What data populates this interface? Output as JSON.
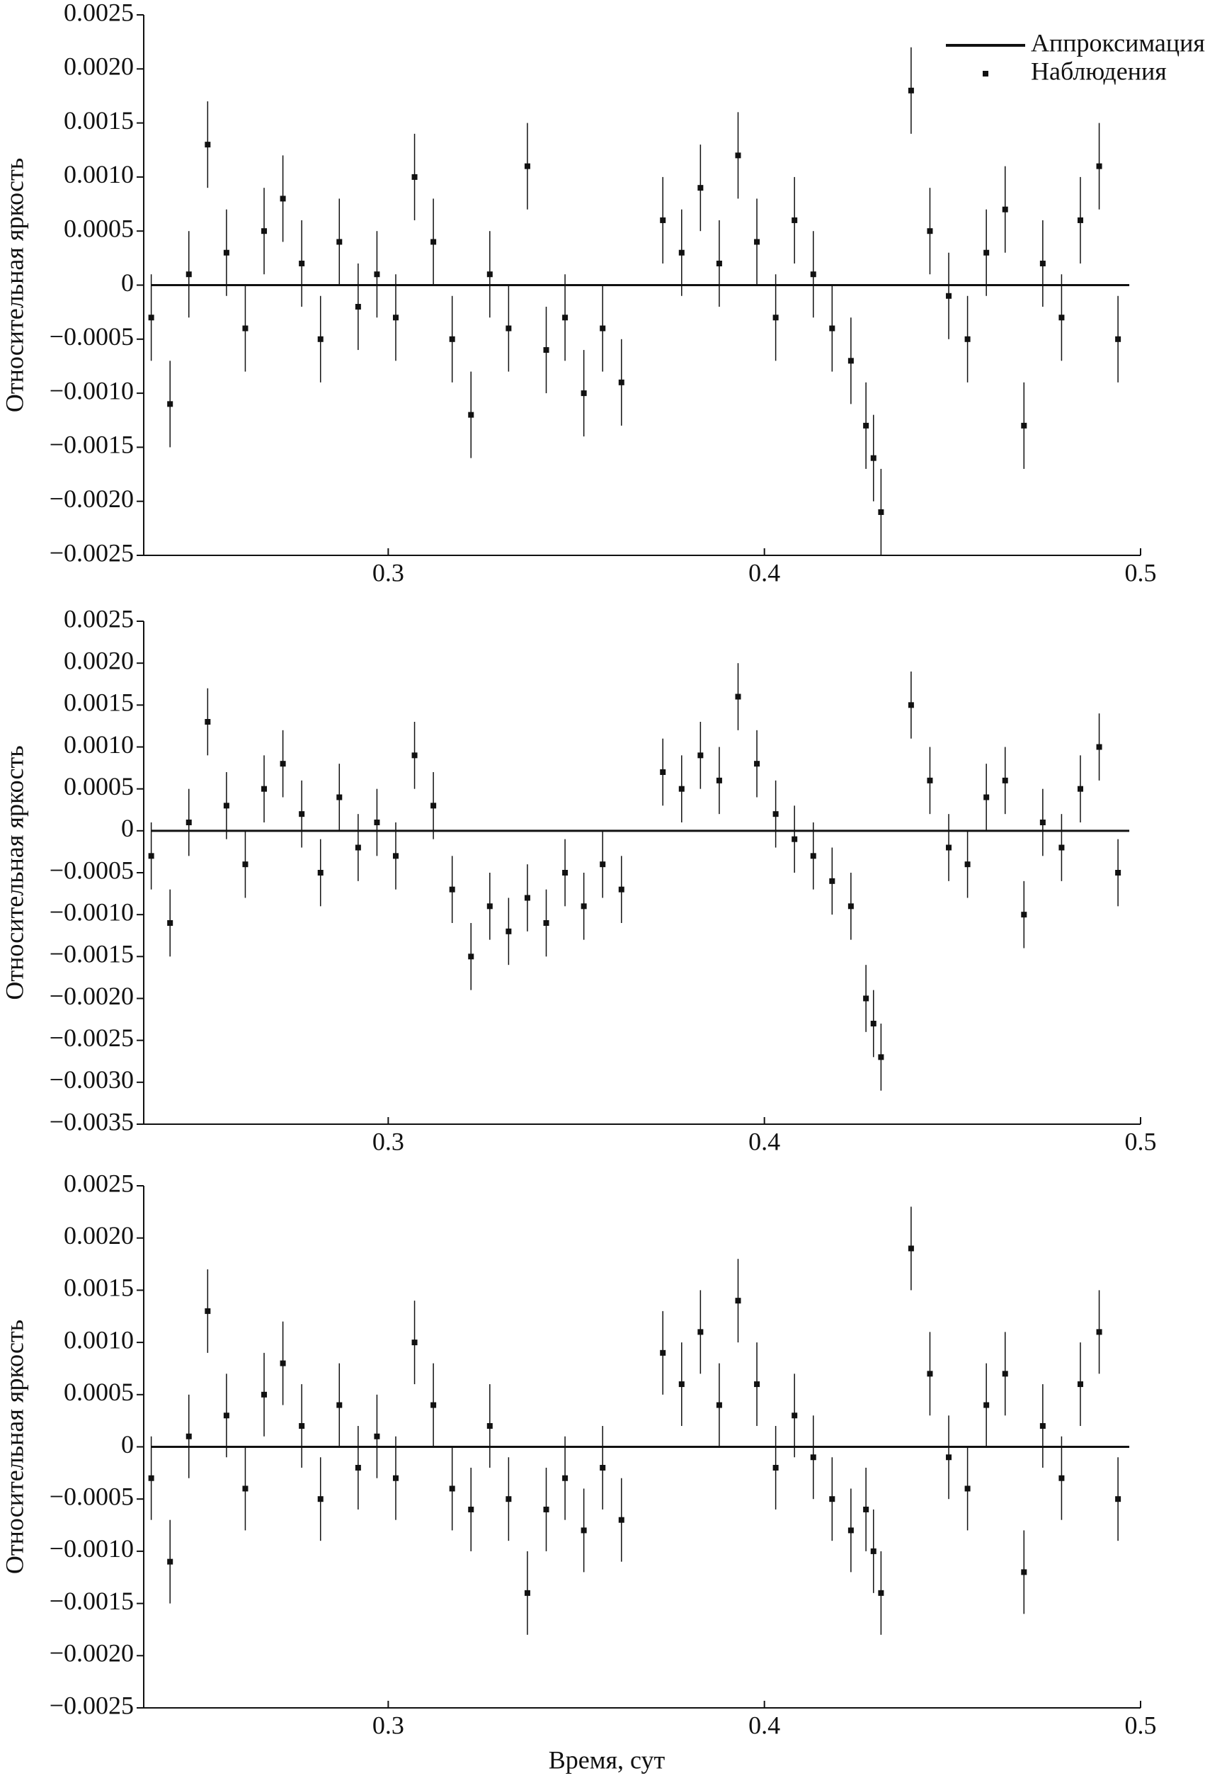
{
  "chart_data": [
    {
      "type": "scatter",
      "ylabel": "Относительная яркость",
      "legend": "upper right",
      "xlim": [
        0.235,
        0.5
      ],
      "xticks": [
        0.3,
        0.4,
        0.5
      ],
      "ylim": [
        -0.0025,
        0.0025
      ],
      "yticks": [
        {
          "value": -0.0025,
          "label": "−0.0025"
        },
        {
          "value": -0.002,
          "label": "−0.0020"
        },
        {
          "value": -0.0015,
          "label": "−0.0015"
        },
        {
          "value": -0.001,
          "label": "−0.0010"
        },
        {
          "value": -0.0005,
          "label": "−0.0005"
        },
        0,
        0.0005,
        {
          "value": 0.001,
          "label": "0.0010"
        },
        0.0015,
        {
          "value": 0.002,
          "label": "0.0020"
        },
        0.0025
      ],
      "series": [
        {
          "name": "Аппроксимация",
          "kind": "line",
          "color": "#111111",
          "x": [
            0.237,
            0.497
          ],
          "values": [
            0,
            0
          ]
        },
        {
          "name": "Наблюдения",
          "kind": "errorbar",
          "color": "#111111",
          "error": 0.0004,
          "x": [
            0.237,
            0.242,
            0.247,
            0.252,
            0.257,
            0.262,
            0.267,
            0.272,
            0.277,
            0.282,
            0.287,
            0.292,
            0.297,
            0.302,
            0.307,
            0.312,
            0.317,
            0.322,
            0.327,
            0.332,
            0.337,
            0.342,
            0.347,
            0.352,
            0.357,
            0.362,
            0.373,
            0.378,
            0.383,
            0.388,
            0.393,
            0.398,
            0.403,
            0.408,
            0.413,
            0.418,
            0.423,
            0.427,
            0.429,
            0.431,
            0.439,
            0.444,
            0.449,
            0.454,
            0.459,
            0.464,
            0.469,
            0.474,
            0.479,
            0.484,
            0.489,
            0.494
          ],
          "values": [
            -0.0003,
            -0.0011,
            0.0001,
            0.0013,
            0.0003,
            -0.0004,
            0.0005,
            0.0008,
            0.0002,
            -0.0005,
            0.0004,
            -0.0002,
            0.0001,
            -0.0003,
            0.001,
            0.0004,
            -0.0005,
            -0.0012,
            0.0001,
            -0.0004,
            0.0011,
            -0.0006,
            -0.0003,
            -0.001,
            -0.0004,
            -0.0009,
            0.0006,
            0.0003,
            0.0009,
            0.0002,
            0.0012,
            0.0004,
            -0.0003,
            0.0006,
            0.0001,
            -0.0004,
            -0.0007,
            -0.0013,
            -0.0016,
            -0.0021,
            0.0018,
            0.0005,
            -0.0001,
            -0.0005,
            0.0003,
            0.0007,
            -0.0013,
            0.0002,
            -0.0003,
            0.0006,
            0.0011,
            -0.0005
          ]
        }
      ]
    },
    {
      "type": "scatter",
      "ylabel": "Относительная яркость",
      "xlim": [
        0.235,
        0.5
      ],
      "xticks": [
        0.3,
        0.4,
        0.5
      ],
      "ylim": [
        -0.0035,
        0.0025
      ],
      "yticks": [
        {
          "value": -0.0035,
          "label": "−0.0035"
        },
        {
          "value": -0.003,
          "label": "−0.0030"
        },
        {
          "value": -0.0025,
          "label": "−0.0025"
        },
        {
          "value": -0.002,
          "label": "−0.0020"
        },
        {
          "value": -0.0015,
          "label": "−0.0015"
        },
        {
          "value": -0.001,
          "label": "−0.0010"
        },
        {
          "value": -0.0005,
          "label": "−0.0005"
        },
        0,
        0.0005,
        {
          "value": 0.001,
          "label": "0.0010"
        },
        0.0015,
        {
          "value": 0.002,
          "label": "0.0020"
        },
        0.0025
      ],
      "series": [
        {
          "kind": "line",
          "color": "#111111",
          "x": [
            0.237,
            0.497
          ],
          "values": [
            0,
            0
          ]
        },
        {
          "kind": "errorbar",
          "color": "#111111",
          "error": 0.0004,
          "x": [
            0.237,
            0.242,
            0.247,
            0.252,
            0.257,
            0.262,
            0.267,
            0.272,
            0.277,
            0.282,
            0.287,
            0.292,
            0.297,
            0.302,
            0.307,
            0.312,
            0.317,
            0.322,
            0.327,
            0.332,
            0.337,
            0.342,
            0.347,
            0.352,
            0.357,
            0.362,
            0.373,
            0.378,
            0.383,
            0.388,
            0.393,
            0.398,
            0.403,
            0.408,
            0.413,
            0.418,
            0.423,
            0.427,
            0.429,
            0.431,
            0.439,
            0.444,
            0.449,
            0.454,
            0.459,
            0.464,
            0.469,
            0.474,
            0.479,
            0.484,
            0.489,
            0.494
          ],
          "values": [
            -0.0003,
            -0.0011,
            0.0001,
            0.0013,
            0.0003,
            -0.0004,
            0.0005,
            0.0008,
            0.0002,
            -0.0005,
            0.0004,
            -0.0002,
            0.0001,
            -0.0003,
            0.0009,
            0.0003,
            -0.0007,
            -0.0015,
            -0.0009,
            -0.0012,
            -0.0008,
            -0.0011,
            -0.0005,
            -0.0009,
            -0.0004,
            -0.0007,
            0.0007,
            0.0005,
            0.0009,
            0.0006,
            0.0016,
            0.0008,
            0.0002,
            -0.0001,
            -0.0003,
            -0.0006,
            -0.0009,
            -0.002,
            -0.0023,
            -0.0027,
            0.0015,
            0.0006,
            -0.0002,
            -0.0004,
            0.0004,
            0.0006,
            -0.001,
            0.0001,
            -0.0002,
            0.0005,
            0.001,
            -0.0005
          ]
        }
      ]
    },
    {
      "type": "scatter",
      "ylabel": "Относительная яркость",
      "xlabel": "Время, сут",
      "xlim": [
        0.235,
        0.5
      ],
      "xticks": [
        0.3,
        0.4,
        0.5
      ],
      "ylim": [
        -0.0025,
        0.0025
      ],
      "yticks": [
        {
          "value": -0.0025,
          "label": "−0.0025"
        },
        {
          "value": -0.002,
          "label": "−0.0020"
        },
        {
          "value": -0.0015,
          "label": "−0.0015"
        },
        {
          "value": -0.001,
          "label": "−0.0010"
        },
        {
          "value": -0.0005,
          "label": "−0.0005"
        },
        0,
        0.0005,
        {
          "value": 0.001,
          "label": "0.0010"
        },
        0.0015,
        {
          "value": 0.002,
          "label": "0.0020"
        },
        0.0025
      ],
      "series": [
        {
          "kind": "line",
          "color": "#111111",
          "x": [
            0.237,
            0.497
          ],
          "values": [
            0,
            0
          ]
        },
        {
          "kind": "errorbar",
          "color": "#111111",
          "error": 0.0004,
          "x": [
            0.237,
            0.242,
            0.247,
            0.252,
            0.257,
            0.262,
            0.267,
            0.272,
            0.277,
            0.282,
            0.287,
            0.292,
            0.297,
            0.302,
            0.307,
            0.312,
            0.317,
            0.322,
            0.327,
            0.332,
            0.337,
            0.342,
            0.347,
            0.352,
            0.357,
            0.362,
            0.373,
            0.378,
            0.383,
            0.388,
            0.393,
            0.398,
            0.403,
            0.408,
            0.413,
            0.418,
            0.423,
            0.427,
            0.429,
            0.431,
            0.439,
            0.444,
            0.449,
            0.454,
            0.459,
            0.464,
            0.469,
            0.474,
            0.479,
            0.484,
            0.489,
            0.494
          ],
          "values": [
            -0.0003,
            -0.0011,
            0.0001,
            0.0013,
            0.0003,
            -0.0004,
            0.0005,
            0.0008,
            0.0002,
            -0.0005,
            0.0004,
            -0.0002,
            0.0001,
            -0.0003,
            0.001,
            0.0004,
            -0.0004,
            -0.0006,
            0.0002,
            -0.0005,
            -0.0014,
            -0.0006,
            -0.0003,
            -0.0008,
            -0.0002,
            -0.0007,
            0.0009,
            0.0006,
            0.0011,
            0.0004,
            0.0014,
            0.0006,
            -0.0002,
            0.0003,
            -0.0001,
            -0.0005,
            -0.0008,
            -0.0006,
            -0.001,
            -0.0014,
            0.0019,
            0.0007,
            -0.0001,
            -0.0004,
            0.0004,
            0.0007,
            -0.0012,
            0.0002,
            -0.0003,
            0.0006,
            0.0011,
            -0.0005
          ]
        }
      ]
    }
  ]
}
